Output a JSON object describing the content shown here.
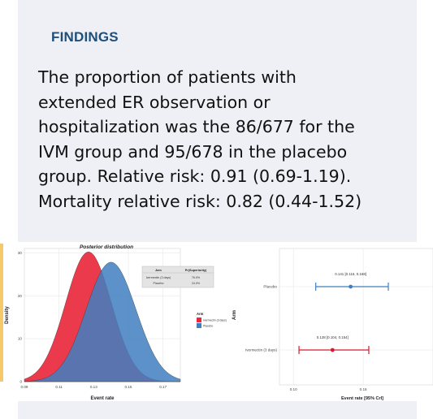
{
  "slide": {
    "heading": "FINDINGS",
    "body_lines": [
      "The proportion of patients with",
      "extended ER observation or",
      "hospitalization was the 86/677 for the",
      "IVM group and 95/678 in the placebo",
      "group. Relative risk: 0.91 (0.69-1.19).",
      "Mortality relative risk: 0.82 (0.44-1.52)"
    ],
    "colors": {
      "heading": "#1f4e79",
      "panel": "#eef0f5",
      "stripe": "#f6c86a"
    }
  },
  "chart_data": [
    {
      "type": "area",
      "title": "Posterior distribution",
      "xlabel": "Event rate",
      "ylabel": "Density",
      "xlim": [
        0.09,
        0.18
      ],
      "ylim": [
        0,
        31
      ],
      "x_ticks": [
        "0.09",
        "0.11",
        "0.13",
        "0.15",
        "0.17"
      ],
      "y_ticks": [
        "0",
        "10",
        "20",
        "30"
      ],
      "grid": true,
      "series": [
        {
          "name": "Ivermectin (3 days)",
          "color": "#e8293d",
          "mean": 0.127,
          "peak_density": 30.2
        },
        {
          "name": "Placebo",
          "color": "#3f7fc0",
          "mean": 0.14,
          "peak_density": 27.8
        }
      ],
      "legend": {
        "title": "Arm",
        "placement": "right",
        "items": [
          "Ivermectin (3 days)",
          "Placebo"
        ]
      },
      "inset_table": {
        "headers": [
          "Arm",
          "Pr(Superiority)"
        ],
        "rows": [
          [
            "Ivermectin (3 days)",
            "76.0%"
          ],
          [
            "Placebo",
            "24.0%"
          ]
        ]
      }
    },
    {
      "type": "scatter",
      "xlabel": "Event rate [95% CrI]",
      "ylabel": "Arm",
      "xlim": [
        0.09,
        0.2
      ],
      "x_ticks": [
        "0.10",
        "0.15"
      ],
      "categories": [
        "Placebo",
        "Ivermectin (3 days)"
      ],
      "grid": true,
      "series": [
        {
          "name": "Placebo",
          "color": "#3f7fc0",
          "estimate": 0.141,
          "lower": 0.116,
          "upper": 0.168,
          "label": "0.141 [0.116, 0.168]"
        },
        {
          "name": "Ivermectin (3 days)",
          "color": "#d7192d",
          "estimate": 0.128,
          "lower": 0.104,
          "upper": 0.154,
          "label": "0.128 [0.104, 0.154]"
        }
      ]
    }
  ]
}
